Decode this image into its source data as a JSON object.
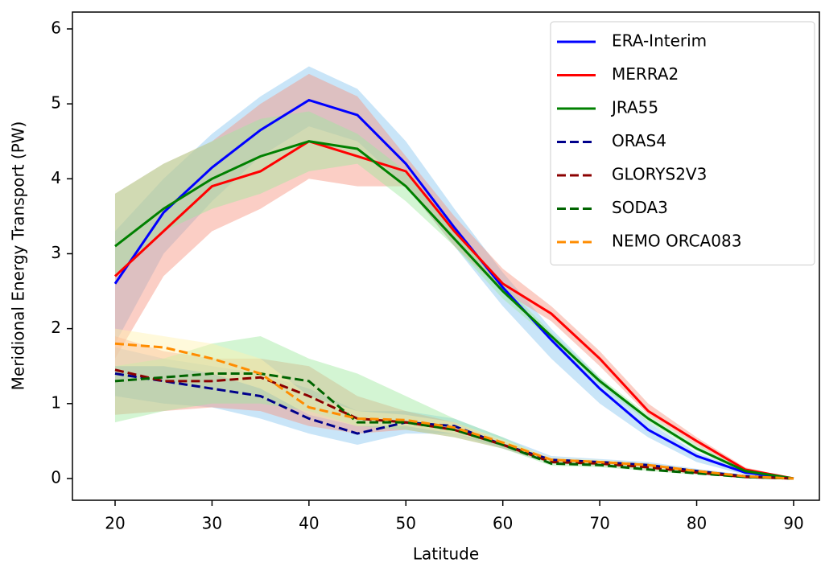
{
  "chart_data": {
    "type": "line",
    "x_label": "Latitude",
    "y_label": "Meridional Energy Transport (PW)",
    "x": [
      20,
      25,
      30,
      35,
      40,
      45,
      50,
      55,
      60,
      65,
      70,
      75,
      80,
      85,
      90
    ],
    "xlim": [
      15.6,
      92.66
    ],
    "xticks": [
      20,
      30,
      40,
      50,
      60,
      70,
      80,
      90
    ],
    "ylim": [
      -0.29,
      6.225
    ],
    "yticks": [
      0,
      1,
      2,
      3,
      4,
      5,
      6
    ],
    "legend": "upper right",
    "series": [
      {
        "name": "ERA-Interim",
        "color": "#0000ff",
        "linestyle": "solid",
        "band_color": "#87c6f0",
        "values": [
          2.6,
          3.55,
          4.15,
          4.65,
          5.05,
          4.85,
          4.2,
          3.35,
          2.55,
          1.85,
          1.2,
          0.65,
          0.3,
          0.08,
          0
        ],
        "lower": [
          1.8,
          3.0,
          3.7,
          4.3,
          4.7,
          4.5,
          3.9,
          3.1,
          2.3,
          1.6,
          1.0,
          0.55,
          0.22,
          0.05,
          0
        ],
        "upper": [
          3.3,
          4.0,
          4.6,
          5.1,
          5.5,
          5.2,
          4.5,
          3.6,
          2.75,
          2.0,
          1.35,
          0.75,
          0.35,
          0.1,
          0
        ]
      },
      {
        "name": "MERRA2",
        "color": "#ff0000",
        "linestyle": "solid",
        "band_color": "#f7937f",
        "values": [
          2.7,
          3.3,
          3.9,
          4.1,
          4.5,
          4.3,
          4.1,
          3.3,
          2.6,
          2.2,
          1.6,
          0.9,
          0.5,
          0.12,
          0
        ],
        "lower": [
          1.6,
          2.7,
          3.3,
          3.6,
          4.0,
          3.9,
          3.9,
          3.1,
          2.5,
          2.1,
          1.5,
          0.85,
          0.45,
          0.1,
          0
        ],
        "upper": [
          3.8,
          4.2,
          4.5,
          5.0,
          5.4,
          5.1,
          4.3,
          3.5,
          2.8,
          2.3,
          1.7,
          1.0,
          0.55,
          0.15,
          0
        ]
      },
      {
        "name": "JRA55",
        "color": "#008000",
        "linestyle": "solid",
        "band_color": "#9ee89e",
        "values": [
          3.1,
          3.6,
          4.0,
          4.3,
          4.5,
          4.4,
          3.9,
          3.2,
          2.5,
          1.9,
          1.3,
          0.8,
          0.4,
          0.1,
          0
        ],
        "lower": [
          2.7,
          3.3,
          3.6,
          3.8,
          4.1,
          4.2,
          3.7,
          3.1,
          2.4,
          1.85,
          1.25,
          0.75,
          0.37,
          0.08,
          0
        ],
        "upper": [
          3.8,
          4.2,
          4.5,
          4.8,
          4.9,
          4.6,
          4.1,
          3.35,
          2.6,
          1.95,
          1.35,
          0.85,
          0.45,
          0.12,
          0
        ]
      },
      {
        "name": "ORAS4",
        "color": "#00008b",
        "linestyle": "dashed",
        "band_color": "#87c6f0",
        "values": [
          1.4,
          1.3,
          1.2,
          1.1,
          0.8,
          0.6,
          0.75,
          0.7,
          0.45,
          0.25,
          0.22,
          0.18,
          0.1,
          0.03,
          0
        ],
        "lower": [
          1.1,
          1.0,
          0.95,
          0.8,
          0.6,
          0.45,
          0.6,
          0.6,
          0.4,
          0.2,
          0.18,
          0.15,
          0.08,
          0.02,
          0
        ],
        "upper": [
          1.75,
          1.6,
          1.5,
          1.4,
          1.2,
          0.9,
          0.9,
          0.8,
          0.55,
          0.3,
          0.26,
          0.22,
          0.13,
          0.05,
          0
        ]
      },
      {
        "name": "GLORYS2V3",
        "color": "#8b0000",
        "linestyle": "dashed",
        "band_color": "#f7937f",
        "values": [
          1.45,
          1.3,
          1.3,
          1.35,
          1.1,
          0.8,
          0.75,
          0.65,
          0.45,
          0.22,
          0.2,
          0.15,
          0.08,
          0.02,
          0
        ],
        "lower": [
          0.85,
          0.9,
          0.95,
          0.9,
          0.7,
          0.6,
          0.65,
          0.55,
          0.4,
          0.2,
          0.17,
          0.12,
          0.06,
          0.01,
          0
        ],
        "upper": [
          1.9,
          1.7,
          1.6,
          1.6,
          1.5,
          1.1,
          0.9,
          0.75,
          0.5,
          0.26,
          0.23,
          0.18,
          0.1,
          0.03,
          0
        ]
      },
      {
        "name": "SODA3",
        "color": "#006400",
        "linestyle": "dashed",
        "band_color": "#9ee89e",
        "values": [
          1.3,
          1.35,
          1.4,
          1.4,
          1.3,
          0.75,
          0.75,
          0.65,
          0.45,
          0.2,
          0.18,
          0.12,
          0.07,
          0.02,
          0
        ],
        "lower": [
          0.75,
          0.9,
          1.0,
          1.0,
          0.9,
          0.7,
          0.65,
          0.55,
          0.4,
          0.17,
          0.15,
          0.1,
          0.05,
          0.01,
          0
        ],
        "upper": [
          1.5,
          1.6,
          1.8,
          1.9,
          1.6,
          1.4,
          1.1,
          0.8,
          0.55,
          0.25,
          0.22,
          0.15,
          0.09,
          0.03,
          0
        ]
      },
      {
        "name": "NEMO ORCA083",
        "color": "#ff8c00",
        "linestyle": "dashed",
        "band_color": "#fff2b0",
        "values": [
          1.8,
          1.75,
          1.6,
          1.4,
          0.95,
          0.8,
          0.78,
          0.68,
          0.48,
          0.25,
          0.22,
          0.18,
          0.1,
          0.03,
          0
        ],
        "lower": [
          1.5,
          1.5,
          1.4,
          1.2,
          0.85,
          0.7,
          0.7,
          0.6,
          0.45,
          0.22,
          0.2,
          0.15,
          0.08,
          0.02,
          0
        ],
        "upper": [
          2.0,
          1.9,
          1.8,
          1.6,
          1.1,
          0.9,
          0.85,
          0.75,
          0.52,
          0.28,
          0.25,
          0.2,
          0.12,
          0.04,
          0
        ]
      }
    ]
  }
}
